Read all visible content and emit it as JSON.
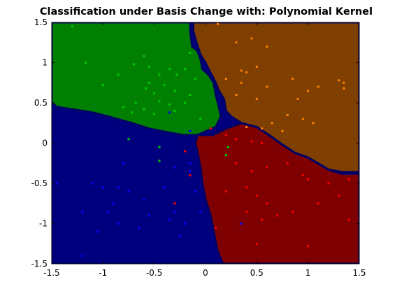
{
  "chart_data": {
    "type": "scatter",
    "title": "Classification under Basis Change with: Polynomial Kernel",
    "xlabel": "",
    "ylabel": "",
    "xlim": [
      -1.5,
      1.5
    ],
    "ylim": [
      -1.5,
      1.5
    ],
    "x_ticks": [
      "-1.5",
      "-1",
      "-0.5",
      "0",
      "0.5",
      "1",
      "1.5"
    ],
    "y_ticks": [
      "-1.5",
      "-1",
      "-0.5",
      "0",
      "0.5",
      "1",
      "1.5"
    ],
    "grid": false,
    "regions": [
      {
        "class": "green",
        "color": "#007f00",
        "boundary": [
          [
            -1.5,
            1.5
          ],
          [
            -0.15,
            1.5
          ],
          [
            -0.15,
            1.4
          ],
          [
            -0.13,
            1.2
          ],
          [
            -0.08,
            1.15
          ],
          [
            -0.05,
            1.05
          ],
          [
            -0.03,
            0.92
          ],
          [
            0.03,
            0.85
          ],
          [
            0.08,
            0.75
          ],
          [
            0.1,
            0.6
          ],
          [
            0.13,
            0.45
          ],
          [
            0.15,
            0.33
          ],
          [
            0.1,
            0.2
          ],
          [
            -0.08,
            0.1
          ],
          [
            -0.22,
            0.1
          ],
          [
            -0.35,
            0.13
          ],
          [
            -0.55,
            0.18
          ],
          [
            -0.72,
            0.25
          ],
          [
            -0.95,
            0.33
          ],
          [
            -1.1,
            0.38
          ],
          [
            -1.2,
            0.4
          ],
          [
            -1.3,
            0.42
          ],
          [
            -1.45,
            0.45
          ],
          [
            -1.5,
            0.5
          ]
        ]
      },
      {
        "class": "orange",
        "color": "#7f3f00",
        "boundary": [
          [
            -0.12,
            1.5
          ],
          [
            1.5,
            1.5
          ],
          [
            1.5,
            -0.36
          ],
          [
            1.33,
            -0.36
          ],
          [
            1.2,
            -0.33
          ],
          [
            1.0,
            -0.18
          ],
          [
            0.87,
            -0.12
          ],
          [
            0.75,
            -0.02
          ],
          [
            0.62,
            0.1
          ],
          [
            0.45,
            0.2
          ],
          [
            0.35,
            0.25
          ],
          [
            0.25,
            0.33
          ],
          [
            0.2,
            0.4
          ],
          [
            0.18,
            0.55
          ],
          [
            0.13,
            0.65
          ],
          [
            0.1,
            0.75
          ],
          [
            0.06,
            0.85
          ],
          [
            0.03,
            0.92
          ],
          [
            0.0,
            1.0
          ],
          [
            -0.05,
            1.1
          ],
          [
            -0.1,
            1.3
          ],
          [
            -0.12,
            1.4
          ]
        ]
      },
      {
        "class": "red",
        "color": "#7f0000",
        "boundary": [
          [
            -0.08,
            0.1
          ],
          [
            0.07,
            0.1
          ],
          [
            0.2,
            0.18
          ],
          [
            0.35,
            0.25
          ],
          [
            0.5,
            0.2
          ],
          [
            0.62,
            0.1
          ],
          [
            0.75,
            -0.02
          ],
          [
            0.87,
            -0.12
          ],
          [
            1.0,
            -0.18
          ],
          [
            1.2,
            -0.33
          ],
          [
            1.33,
            -0.38
          ],
          [
            1.5,
            -0.38
          ],
          [
            1.5,
            -1.5
          ],
          [
            0.17,
            -1.5
          ],
          [
            0.12,
            -1.35
          ],
          [
            0.08,
            -1.1
          ],
          [
            0.05,
            -0.9
          ],
          [
            0.0,
            -0.7
          ],
          [
            -0.03,
            -0.5
          ],
          [
            -0.05,
            -0.3
          ],
          [
            -0.08,
            -0.1
          ],
          [
            -0.1,
            0.0
          ]
        ]
      }
    ],
    "boundary_color": "#000066",
    "series": [
      {
        "class": "green",
        "color": "#00cc00",
        "points": [
          [
            -1.3,
            1.45
          ],
          [
            -1.17,
            1.0
          ],
          [
            -1.0,
            0.72
          ],
          [
            -0.85,
            0.85
          ],
          [
            -0.7,
            0.98
          ],
          [
            -0.6,
            1.08
          ],
          [
            -0.55,
            0.95
          ],
          [
            -0.45,
            0.85
          ],
          [
            -0.35,
            0.92
          ],
          [
            -0.28,
            0.85
          ],
          [
            -0.2,
            0.92
          ],
          [
            -0.15,
            1.12
          ],
          [
            -0.1,
            0.8
          ],
          [
            -0.4,
            0.72
          ],
          [
            -0.5,
            0.62
          ],
          [
            -0.58,
            0.68
          ],
          [
            -0.45,
            0.52
          ],
          [
            -0.35,
            0.48
          ],
          [
            -0.8,
            0.45
          ],
          [
            -0.72,
            0.38
          ],
          [
            -0.68,
            0.5
          ],
          [
            -0.6,
            0.42
          ],
          [
            -0.5,
            0.36
          ],
          [
            -0.3,
            0.4
          ],
          [
            -0.2,
            0.5
          ],
          [
            -0.15,
            0.6
          ],
          [
            -0.05,
            0.3
          ],
          [
            -0.55,
            0.75
          ],
          [
            -0.3,
            0.65
          ],
          [
            -0.45,
            -0.05
          ],
          [
            -0.45,
            -0.22
          ],
          [
            -0.75,
            0.05
          ],
          [
            0.22,
            -0.05
          ],
          [
            0.2,
            -0.15
          ]
        ]
      },
      {
        "class": "orange",
        "color": "#ff8000",
        "points": [
          [
            0.12,
            1.48
          ],
          [
            0.3,
            1.25
          ],
          [
            0.45,
            1.3
          ],
          [
            0.6,
            1.2
          ],
          [
            0.35,
            0.75
          ],
          [
            0.35,
            0.9
          ],
          [
            0.4,
            0.88
          ],
          [
            0.5,
            0.95
          ],
          [
            0.5,
            0.55
          ],
          [
            0.6,
            0.7
          ],
          [
            0.85,
            0.8
          ],
          [
            1.0,
            0.65
          ],
          [
            1.1,
            0.7
          ],
          [
            0.9,
            0.55
          ],
          [
            0.8,
            0.35
          ],
          [
            0.95,
            0.3
          ],
          [
            1.05,
            0.25
          ],
          [
            0.65,
            0.25
          ],
          [
            0.55,
            0.18
          ],
          [
            0.4,
            0.2
          ],
          [
            0.3,
            0.6
          ],
          [
            0.2,
            0.8
          ],
          [
            1.3,
            0.78
          ],
          [
            1.35,
            0.75
          ],
          [
            1.35,
            0.68
          ],
          [
            0.75,
            0.15
          ]
        ]
      },
      {
        "class": "red",
        "color": "#ff0000",
        "points": [
          [
            0.05,
            0.18
          ],
          [
            0.2,
            0.1
          ],
          [
            0.3,
            0.05
          ],
          [
            0.45,
            0.02
          ],
          [
            0.55,
            0.0
          ],
          [
            0.3,
            -0.25
          ],
          [
            0.45,
            -0.35
          ],
          [
            0.6,
            -0.3
          ],
          [
            0.8,
            -0.25
          ],
          [
            0.95,
            -0.4
          ],
          [
            1.0,
            -0.45
          ],
          [
            1.2,
            -0.5
          ],
          [
            1.4,
            -0.45
          ],
          [
            0.4,
            -0.55
          ],
          [
            0.5,
            -0.65
          ],
          [
            0.6,
            -0.75
          ],
          [
            0.55,
            -0.95
          ],
          [
            0.7,
            -0.9
          ],
          [
            0.85,
            -0.85
          ],
          [
            1.1,
            -0.75
          ],
          [
            1.3,
            -0.65
          ],
          [
            1.4,
            -0.95
          ],
          [
            0.4,
            -0.85
          ],
          [
            0.5,
            -1.25
          ],
          [
            1.0,
            -1.28
          ],
          [
            0.2,
            -0.6
          ],
          [
            -0.15,
            -0.4
          ],
          [
            -0.3,
            -0.75
          ],
          [
            0.1,
            -1.05
          ],
          [
            -0.2,
            -0.1
          ]
        ]
      },
      {
        "class": "blue",
        "color": "#0000ff",
        "points": [
          [
            -1.45,
            -0.5
          ],
          [
            -1.2,
            -0.85
          ],
          [
            -1.1,
            -0.5
          ],
          [
            -1.0,
            -0.55
          ],
          [
            -0.95,
            -0.85
          ],
          [
            -0.9,
            -0.75
          ],
          [
            -0.85,
            -0.55
          ],
          [
            -0.75,
            -0.6
          ],
          [
            -0.6,
            -0.7
          ],
          [
            -0.55,
            -0.9
          ],
          [
            -0.4,
            -0.55
          ],
          [
            -0.35,
            -0.95
          ],
          [
            -0.3,
            -0.85
          ],
          [
            -0.25,
            -1.15
          ],
          [
            -0.2,
            -1.0
          ],
          [
            -0.15,
            -0.35
          ],
          [
            -0.1,
            -0.6
          ],
          [
            -0.05,
            -0.85
          ],
          [
            -0.65,
            -1.05
          ],
          [
            -0.85,
            -1.0
          ],
          [
            -1.05,
            -1.1
          ],
          [
            -1.2,
            -1.4
          ],
          [
            -0.35,
            0.38
          ],
          [
            -0.15,
            0.15
          ],
          [
            -0.3,
            -0.3
          ],
          [
            -0.8,
            -0.25
          ],
          [
            0.35,
            -1.0
          ],
          [
            -0.15,
            -0.25
          ]
        ]
      }
    ]
  }
}
